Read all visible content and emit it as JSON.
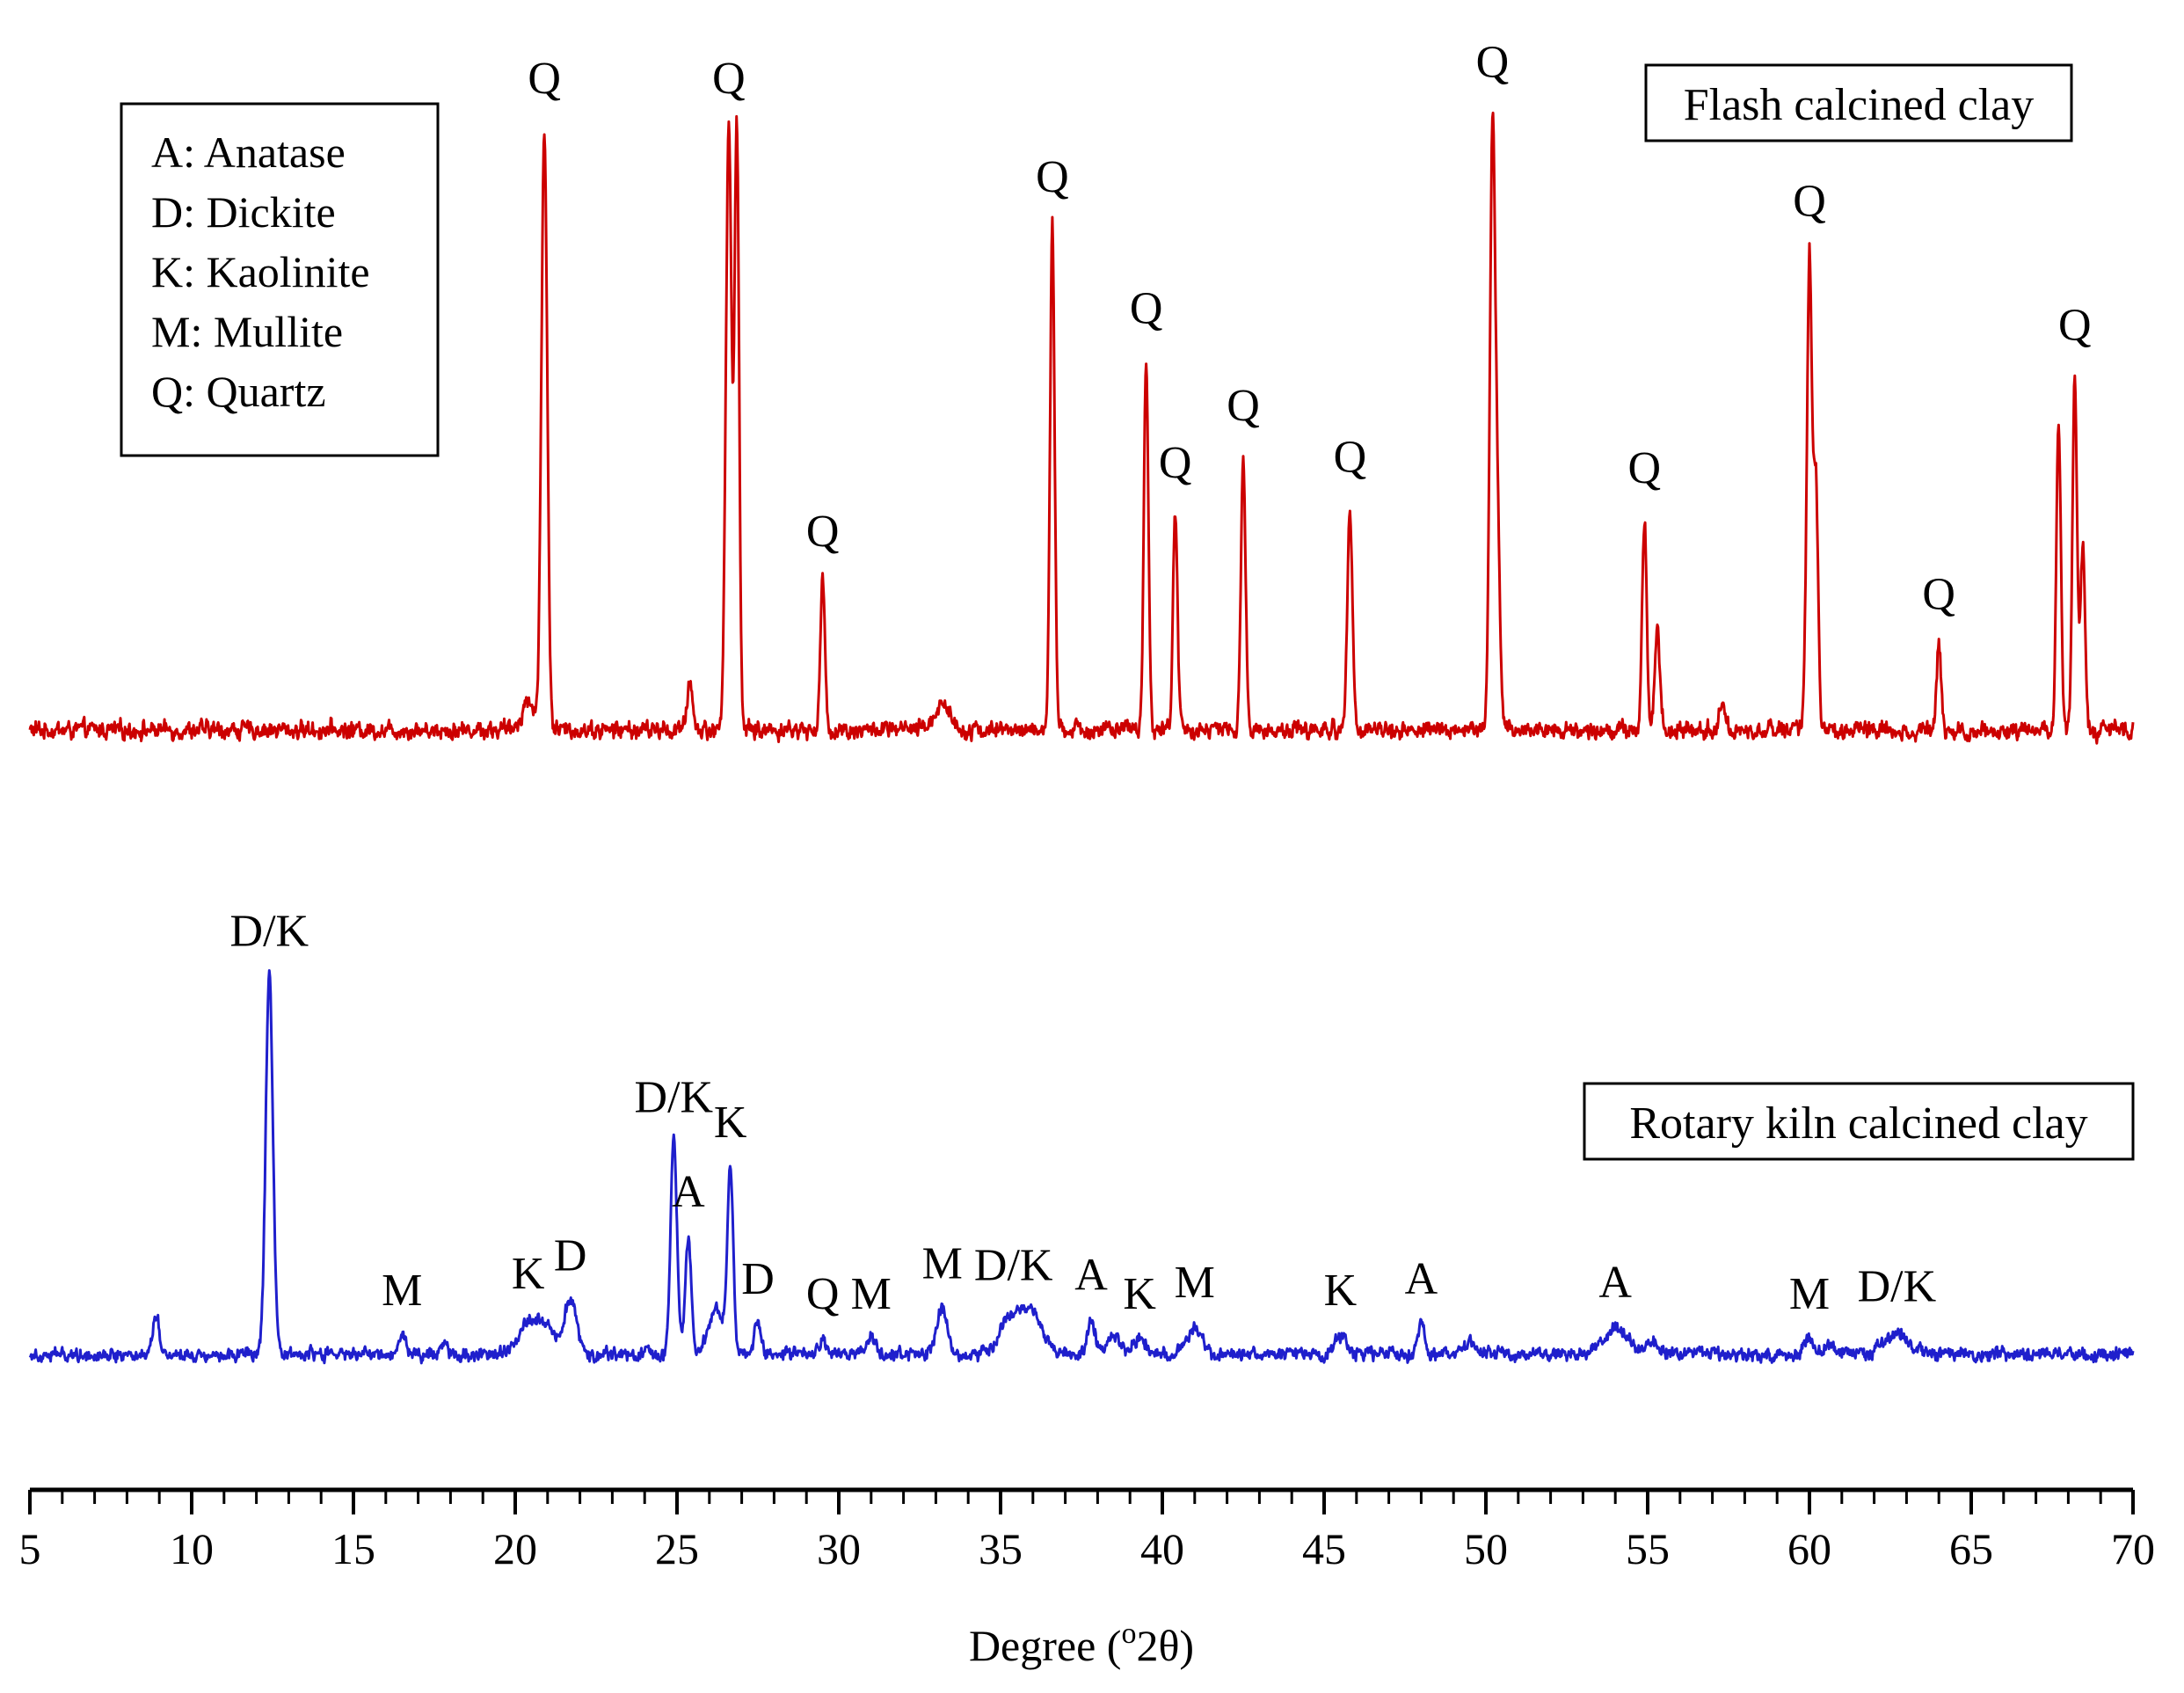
{
  "chart_data": {
    "type": "line",
    "title": "",
    "xlabel": "Degree (°2θ)",
    "xlabel_parts": {
      "prefix": "Degree (",
      "sup": "o",
      "suffix": "2θ)"
    },
    "ylabel": "",
    "xlim": [
      5,
      70
    ],
    "x_ticks": [
      5,
      10,
      15,
      20,
      25,
      30,
      35,
      40,
      45,
      50,
      55,
      60,
      65,
      70
    ],
    "grid": false,
    "legend": {
      "placement": "top-left",
      "entries": [
        "A: Anatase",
        "D: Dickite",
        "K: Kaolinite",
        "M: Mullite",
        "Q: Quartz"
      ]
    },
    "series": [
      {
        "name": "Flash calcined clay",
        "color": "#cc0000",
        "label_box": "Flash calcined clay",
        "baseline": 0,
        "noise": 0.22,
        "peaks": [
          {
            "x": 20.9,
            "h": 10.5,
            "w": 0.09,
            "label": "Q"
          },
          {
            "x": 26.6,
            "h": 10.5,
            "w": 0.09,
            "label": "Q"
          },
          {
            "x": 26.85,
            "h": 10.5,
            "w": 0.07,
            "label": ""
          },
          {
            "x": 25.4,
            "h": 0.9,
            "w": 0.08,
            "label": ""
          },
          {
            "x": 20.4,
            "h": 0.5,
            "w": 0.2,
            "label": ""
          },
          {
            "x": 29.5,
            "h": 2.6,
            "w": 0.07,
            "label": "Q"
          },
          {
            "x": 33.2,
            "h": 0.45,
            "w": 0.25,
            "label": ""
          },
          {
            "x": 36.6,
            "h": 8.8,
            "w": 0.07,
            "label": "Q"
          },
          {
            "x": 39.5,
            "h": 6.5,
            "w": 0.07,
            "label": "Q"
          },
          {
            "x": 40.4,
            "h": 3.8,
            "w": 0.07,
            "label": "Q"
          },
          {
            "x": 42.5,
            "h": 4.8,
            "w": 0.07,
            "label": "Q"
          },
          {
            "x": 45.8,
            "h": 3.9,
            "w": 0.08,
            "label": "Q"
          },
          {
            "x": 50.2,
            "h": 10.2,
            "w": 0.08,
            "label": "Q"
          },
          {
            "x": 50.35,
            "h": 3.5,
            "w": 0.08,
            "label": ""
          },
          {
            "x": 54.9,
            "h": 3.7,
            "w": 0.07,
            "label": "Q"
          },
          {
            "x": 55.3,
            "h": 1.8,
            "w": 0.08,
            "label": ""
          },
          {
            "x": 57.3,
            "h": 0.4,
            "w": 0.1,
            "label": ""
          },
          {
            "x": 60.0,
            "h": 8.3,
            "w": 0.08,
            "label": "Q"
          },
          {
            "x": 60.2,
            "h": 4.2,
            "w": 0.07,
            "label": ""
          },
          {
            "x": 64.0,
            "h": 1.5,
            "w": 0.07,
            "label": "Q"
          },
          {
            "x": 67.7,
            "h": 5.4,
            "w": 0.07,
            "label": ""
          },
          {
            "x": 68.2,
            "h": 6.2,
            "w": 0.07,
            "label": "Q"
          },
          {
            "x": 68.45,
            "h": 3.3,
            "w": 0.07,
            "label": ""
          }
        ]
      },
      {
        "name": "Rotary kiln calcined clay",
        "color": "#1f1fcc",
        "label_box": "Rotary kiln calcined clay",
        "baseline": 0,
        "noise": 0.25,
        "peaks": [
          {
            "x": 8.9,
            "h": 1.1,
            "w": 0.1,
            "label": ""
          },
          {
            "x": 12.4,
            "h": 10.0,
            "w": 0.11,
            "label": "D/K"
          },
          {
            "x": 16.5,
            "h": 0.5,
            "w": 0.12,
            "label": "M"
          },
          {
            "x": 17.8,
            "h": 0.4,
            "w": 0.1,
            "label": ""
          },
          {
            "x": 20.4,
            "h": 0.9,
            "w": 0.3,
            "label": "K"
          },
          {
            "x": 21.0,
            "h": 0.7,
            "w": 0.25,
            "label": ""
          },
          {
            "x": 21.7,
            "h": 1.4,
            "w": 0.2,
            "label": "D"
          },
          {
            "x": 24.9,
            "h": 5.6,
            "w": 0.1,
            "label": "D/K"
          },
          {
            "x": 25.35,
            "h": 3.1,
            "w": 0.09,
            "label": "A"
          },
          {
            "x": 26.2,
            "h": 1.2,
            "w": 0.25,
            "label": ""
          },
          {
            "x": 26.65,
            "h": 4.7,
            "w": 0.09,
            "label": "K"
          },
          {
            "x": 27.5,
            "h": 0.8,
            "w": 0.12,
            "label": "D"
          },
          {
            "x": 29.5,
            "h": 0.4,
            "w": 0.1,
            "label": "Q"
          },
          {
            "x": 31.0,
            "h": 0.4,
            "w": 0.15,
            "label": "M"
          },
          {
            "x": 33.2,
            "h": 1.2,
            "w": 0.16,
            "label": "M"
          },
          {
            "x": 35.4,
            "h": 1.1,
            "w": 0.4,
            "label": "D/K"
          },
          {
            "x": 36.1,
            "h": 0.8,
            "w": 0.3,
            "label": ""
          },
          {
            "x": 37.8,
            "h": 0.9,
            "w": 0.12,
            "label": "A"
          },
          {
            "x": 38.5,
            "h": 0.5,
            "w": 0.18,
            "label": ""
          },
          {
            "x": 39.3,
            "h": 0.4,
            "w": 0.2,
            "label": "K"
          },
          {
            "x": 41.0,
            "h": 0.7,
            "w": 0.22,
            "label": "M"
          },
          {
            "x": 45.5,
            "h": 0.5,
            "w": 0.2,
            "label": "K"
          },
          {
            "x": 48.0,
            "h": 0.8,
            "w": 0.12,
            "label": "A"
          },
          {
            "x": 49.5,
            "h": 0.3,
            "w": 0.2,
            "label": ""
          },
          {
            "x": 54.0,
            "h": 0.7,
            "w": 0.35,
            "label": "A"
          },
          {
            "x": 55.1,
            "h": 0.4,
            "w": 0.2,
            "label": ""
          },
          {
            "x": 60.0,
            "h": 0.4,
            "w": 0.15,
            "label": "M"
          },
          {
            "x": 60.6,
            "h": 0.3,
            "w": 0.15,
            "label": ""
          },
          {
            "x": 62.7,
            "h": 0.6,
            "w": 0.35,
            "label": "D/K"
          }
        ]
      }
    ]
  }
}
